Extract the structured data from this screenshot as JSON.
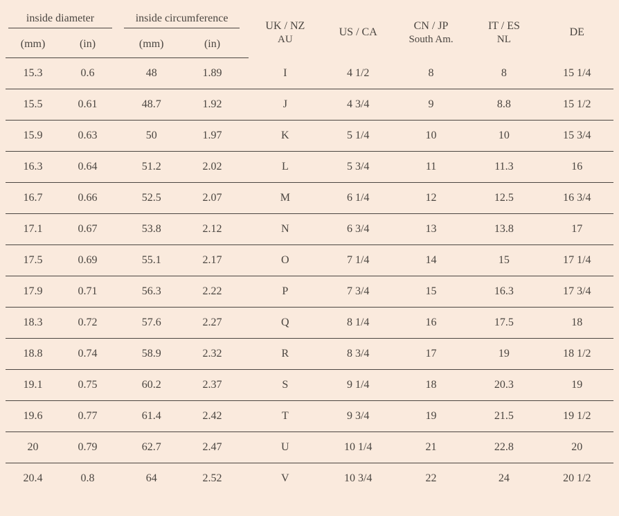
{
  "type": "table",
  "background_color": "#faeadd",
  "text_color": "#4a4540",
  "border_color": "#4a4540",
  "font_family": "Georgia, serif",
  "body_fontsize": 16,
  "header_fontsize": 16,
  "headers": {
    "diameter_group": "inside diameter",
    "circumference_group": "inside circumference",
    "unit_mm": "(mm)",
    "unit_in": "(in)",
    "regions": {
      "uk": {
        "line1": "UK / NZ",
        "line2": "AU"
      },
      "us": {
        "line1": "US / CA",
        "line2": ""
      },
      "cn": {
        "line1": "CN / JP",
        "line2": "South Am."
      },
      "it": {
        "line1": "IT / ES",
        "line2": "NL"
      },
      "de": {
        "line1": "DE",
        "line2": ""
      }
    }
  },
  "columns": [
    "dia_mm",
    "dia_in",
    "cir_mm",
    "cir_in",
    "uk",
    "us",
    "cn",
    "it",
    "de"
  ],
  "rows": [
    {
      "dia_mm": "15.3",
      "dia_in": "0.6",
      "cir_mm": "48",
      "cir_in": "1.89",
      "uk": "I",
      "us": "4 1/2",
      "cn": "8",
      "it": "8",
      "de": "15 1/4"
    },
    {
      "dia_mm": "15.5",
      "dia_in": "0.61",
      "cir_mm": "48.7",
      "cir_in": "1.92",
      "uk": "J",
      "us": "4 3/4",
      "cn": "9",
      "it": "8.8",
      "de": "15 1/2"
    },
    {
      "dia_mm": "15.9",
      "dia_in": "0.63",
      "cir_mm": "50",
      "cir_in": "1.97",
      "uk": "K",
      "us": "5 1/4",
      "cn": "10",
      "it": "10",
      "de": "15 3/4"
    },
    {
      "dia_mm": "16.3",
      "dia_in": "0.64",
      "cir_mm": "51.2",
      "cir_in": "2.02",
      "uk": "L",
      "us": "5 3/4",
      "cn": "11",
      "it": "11.3",
      "de": "16"
    },
    {
      "dia_mm": "16.7",
      "dia_in": "0.66",
      "cir_mm": "52.5",
      "cir_in": "2.07",
      "uk": "M",
      "us": "6 1/4",
      "cn": "12",
      "it": "12.5",
      "de": "16 3/4"
    },
    {
      "dia_mm": "17.1",
      "dia_in": "0.67",
      "cir_mm": "53.8",
      "cir_in": "2.12",
      "uk": "N",
      "us": "6 3/4",
      "cn": "13",
      "it": "13.8",
      "de": "17"
    },
    {
      "dia_mm": "17.5",
      "dia_in": "0.69",
      "cir_mm": "55.1",
      "cir_in": "2.17",
      "uk": "O",
      "us": "7 1/4",
      "cn": "14",
      "it": "15",
      "de": "17 1/4"
    },
    {
      "dia_mm": "17.9",
      "dia_in": "0.71",
      "cir_mm": "56.3",
      "cir_in": "2.22",
      "uk": "P",
      "us": "7 3/4",
      "cn": "15",
      "it": "16.3",
      "de": "17 3/4"
    },
    {
      "dia_mm": "18.3",
      "dia_in": "0.72",
      "cir_mm": "57.6",
      "cir_in": "2.27",
      "uk": "Q",
      "us": "8 1/4",
      "cn": "16",
      "it": "17.5",
      "de": "18"
    },
    {
      "dia_mm": "18.8",
      "dia_in": "0.74",
      "cir_mm": "58.9",
      "cir_in": "2.32",
      "uk": "R",
      "us": "8 3/4",
      "cn": "17",
      "it": "19",
      "de": "18 1/2"
    },
    {
      "dia_mm": "19.1",
      "dia_in": "0.75",
      "cir_mm": "60.2",
      "cir_in": "2.37",
      "uk": "S",
      "us": "9 1/4",
      "cn": "18",
      "it": "20.3",
      "de": "19"
    },
    {
      "dia_mm": "19.6",
      "dia_in": "0.77",
      "cir_mm": "61.4",
      "cir_in": "2.42",
      "uk": "T",
      "us": "9 3/4",
      "cn": "19",
      "it": "21.5",
      "de": "19 1/2"
    },
    {
      "dia_mm": "20",
      "dia_in": "0.79",
      "cir_mm": "62.7",
      "cir_in": "2.47",
      "uk": "U",
      "us": "10 1/4",
      "cn": "21",
      "it": "22.8",
      "de": "20"
    },
    {
      "dia_mm": "20.4",
      "dia_in": "0.8",
      "cir_mm": "64",
      "cir_in": "2.52",
      "uk": "V",
      "us": "10 3/4",
      "cn": "22",
      "it": "24",
      "de": "20 1/2"
    }
  ]
}
